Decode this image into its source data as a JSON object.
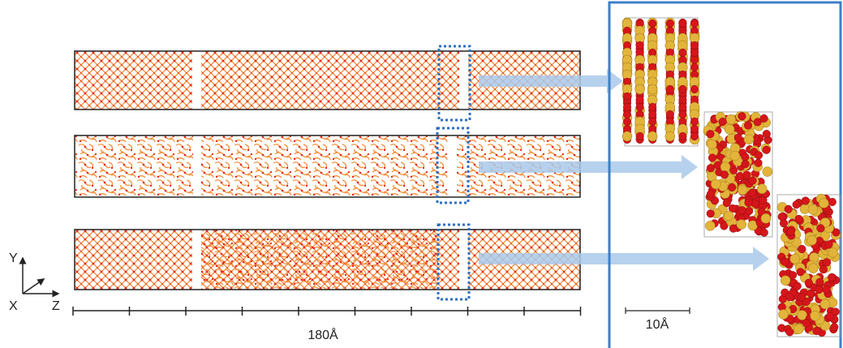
{
  "axes": {
    "y": "Y",
    "x": "X",
    "z": "Z"
  },
  "slab_scale": "180Å",
  "inset_scale": "10Å"
}
